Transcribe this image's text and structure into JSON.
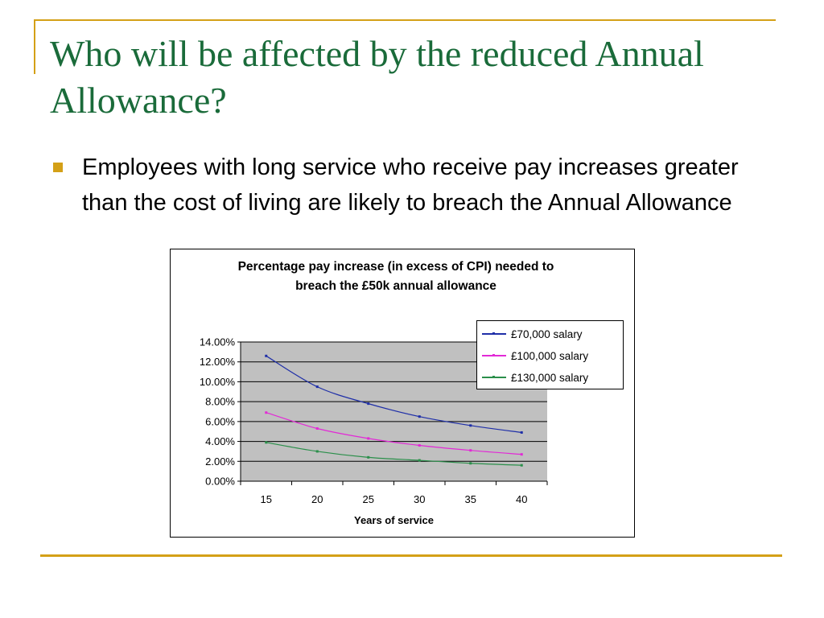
{
  "slide": {
    "title": "Who will be affected by the reduced Annual Allowance?",
    "bullet": "Employees with long service who receive pay increases greater than the cost of living are likely to breach the Annual Allowance"
  },
  "colors": {
    "title": "#1a6b3a",
    "accent": "#d4a017",
    "plot_bg": "#c0c0c0"
  },
  "chart_data": {
    "type": "line",
    "title": "Percentage pay increase (in excess of CPI) needed to breach the £50k annual allowance",
    "xlabel": "Years of service",
    "ylabel": "",
    "x": [
      15,
      20,
      25,
      30,
      35,
      40
    ],
    "ylim": [
      0,
      0.14
    ],
    "yticks": [
      "0.00%",
      "2.00%",
      "4.00%",
      "6.00%",
      "8.00%",
      "10.00%",
      "12.00%",
      "14.00%"
    ],
    "grid": true,
    "legend": "top-right",
    "series": [
      {
        "name": "£70,000 salary",
        "color": "#1f2fa8",
        "values": [
          0.126,
          0.095,
          0.078,
          0.065,
          0.056,
          0.049
        ]
      },
      {
        "name": "£100,000 salary",
        "color": "#e22ad6",
        "values": [
          0.069,
          0.053,
          0.043,
          0.036,
          0.031,
          0.027
        ]
      },
      {
        "name": "£130,000 salary",
        "color": "#2a8f4a",
        "values": [
          0.039,
          0.03,
          0.024,
          0.021,
          0.018,
          0.016
        ]
      }
    ]
  }
}
